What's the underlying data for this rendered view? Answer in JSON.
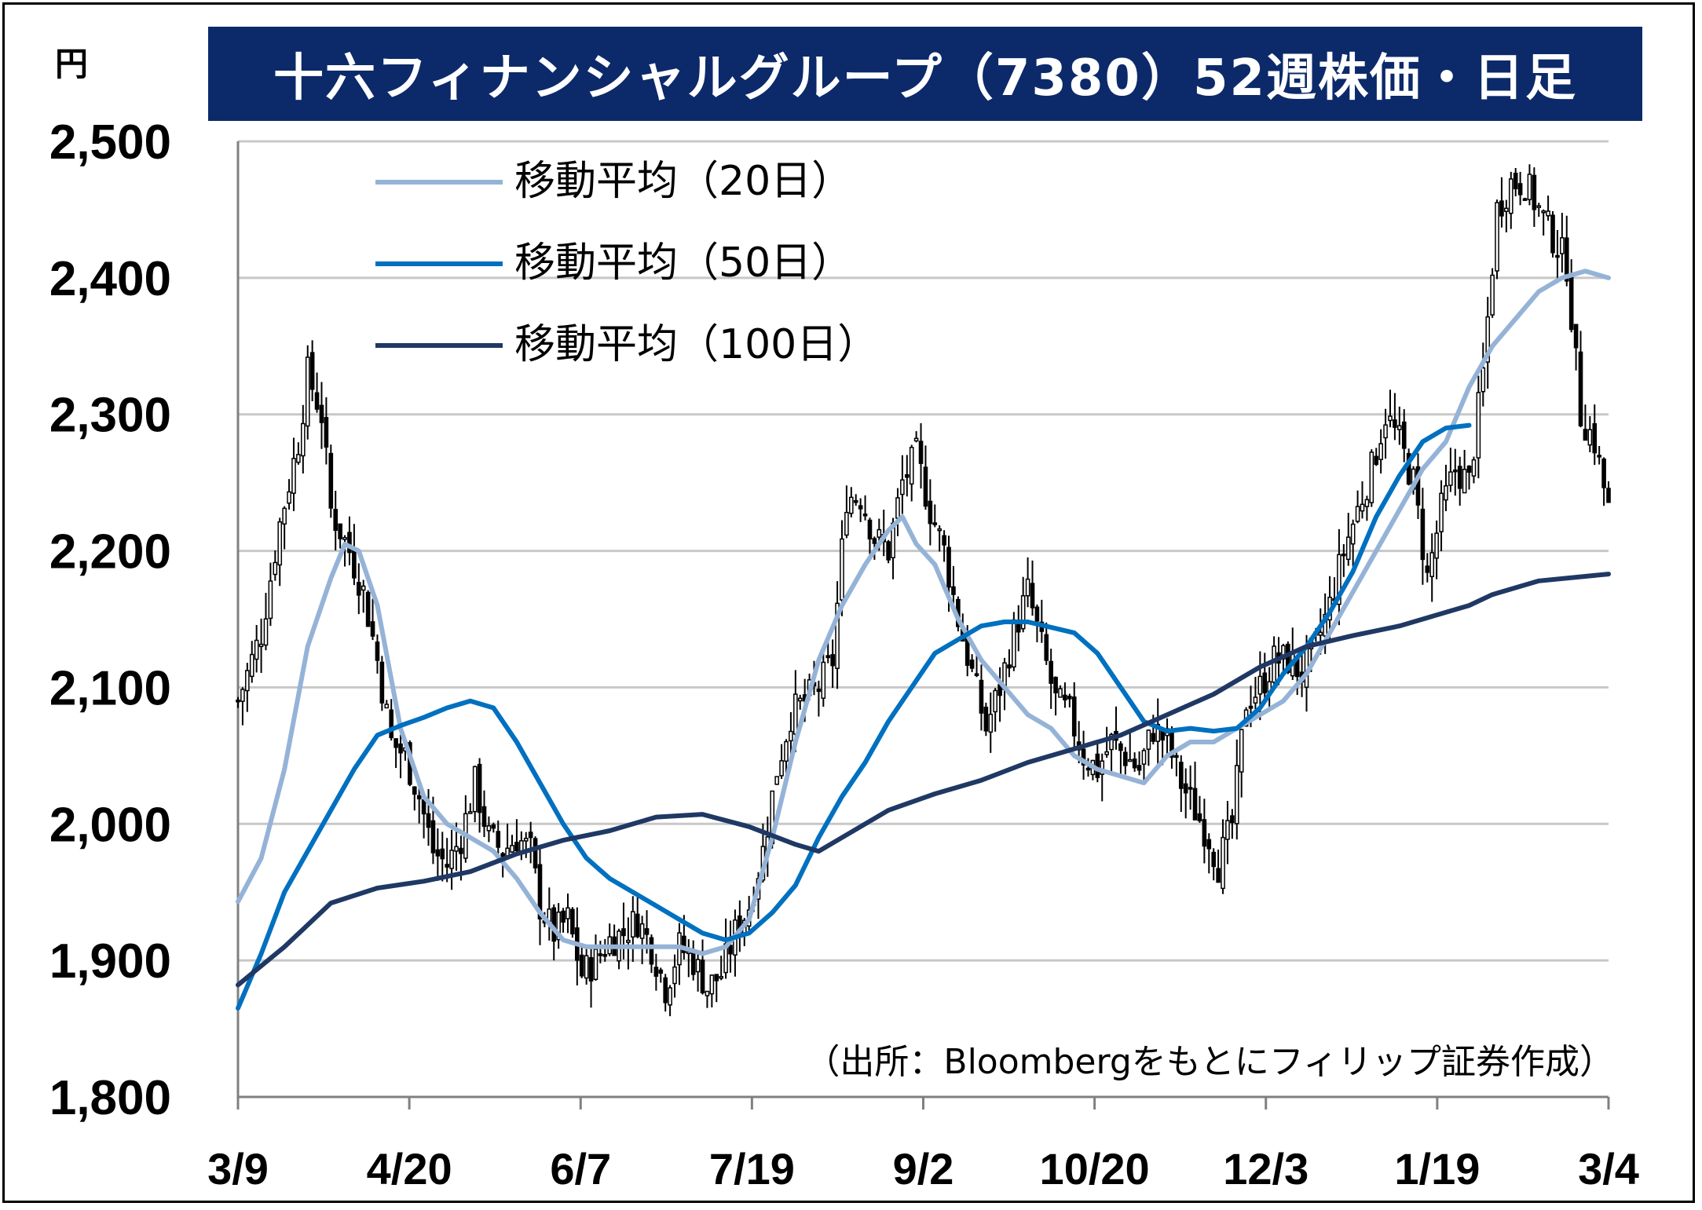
{
  "unit_label": "円",
  "chart_data": {
    "type": "candlestick",
    "title": "十六フィナンシャルグループ（7380）52週株価・日足",
    "source_note": "（出所：Bloombergをもとにフィリップ証券作成）",
    "ylim": [
      1800,
      2500
    ],
    "y_ticks": [
      "1,800",
      "1,900",
      "2,000",
      "2,100",
      "2,200",
      "2,300",
      "2,400",
      "2,500"
    ],
    "y_tick_values": [
      1800,
      1900,
      2000,
      2100,
      2200,
      2300,
      2400,
      2500
    ],
    "x_ticks": [
      "3/9",
      "4/20",
      "6/7",
      "7/19",
      "9/2",
      "10/20",
      "12/3",
      "1/19",
      "3/4"
    ],
    "grid": true,
    "legend_position": "top-left",
    "colors": {
      "ma20": "#95b3d7",
      "ma50": "#0070c0",
      "ma100": "#1f3864",
      "candle": "#000000",
      "title_bg": "#0c2a6a",
      "grid": "#c8c8c8"
    },
    "price_anchors": [
      [
        0,
        2090
      ],
      [
        5,
        2140
      ],
      [
        9,
        2220
      ],
      [
        13,
        2280
      ],
      [
        15,
        2330
      ],
      [
        18,
        2300
      ],
      [
        20,
        2230
      ],
      [
        24,
        2200
      ],
      [
        27,
        2170
      ],
      [
        30,
        2120
      ],
      [
        33,
        2060
      ],
      [
        36,
        2050
      ],
      [
        39,
        2020
      ],
      [
        42,
        1980
      ],
      [
        45,
        1970
      ],
      [
        48,
        1990
      ],
      [
        51,
        2030
      ],
      [
        54,
        1990
      ],
      [
        57,
        1980
      ],
      [
        60,
        1990
      ],
      [
        63,
        1980
      ],
      [
        65,
        1940
      ],
      [
        68,
        1920
      ],
      [
        71,
        1930
      ],
      [
        74,
        1890
      ],
      [
        77,
        1900
      ],
      [
        80,
        1915
      ],
      [
        83,
        1920
      ],
      [
        86,
        1930
      ],
      [
        89,
        1910
      ],
      [
        92,
        1880
      ],
      [
        95,
        1910
      ],
      [
        98,
        1900
      ],
      [
        101,
        1880
      ],
      [
        104,
        1890
      ],
      [
        107,
        1920
      ],
      [
        110,
        1940
      ],
      [
        113,
        1980
      ],
      [
        116,
        2040
      ],
      [
        119,
        2080
      ],
      [
        122,
        2090
      ],
      [
        125,
        2100
      ],
      [
        128,
        2120
      ],
      [
        131,
        2240
      ],
      [
        134,
        2240
      ],
      [
        137,
        2210
      ],
      [
        140,
        2200
      ],
      [
        143,
        2250
      ],
      [
        146,
        2270
      ],
      [
        149,
        2230
      ],
      [
        152,
        2200
      ],
      [
        155,
        2150
      ],
      [
        158,
        2110
      ],
      [
        161,
        2070
      ],
      [
        164,
        2100
      ],
      [
        167,
        2140
      ],
      [
        170,
        2170
      ],
      [
        173,
        2130
      ],
      [
        176,
        2090
      ],
      [
        179,
        2080
      ],
      [
        182,
        2050
      ],
      [
        185,
        2040
      ],
      [
        188,
        2060
      ],
      [
        191,
        2050
      ],
      [
        194,
        2040
      ],
      [
        197,
        2070
      ],
      [
        200,
        2060
      ],
      [
        203,
        2030
      ],
      [
        206,
        2010
      ],
      [
        209,
        1990
      ],
      [
        211,
        1970
      ],
      [
        214,
        2000
      ],
      [
        217,
        2090
      ],
      [
        220,
        2100
      ],
      [
        223,
        2120
      ],
      [
        226,
        2120
      ],
      [
        229,
        2110
      ],
      [
        232,
        2130
      ],
      [
        235,
        2160
      ],
      [
        238,
        2200
      ],
      [
        241,
        2230
      ],
      [
        244,
        2260
      ],
      [
        247,
        2300
      ],
      [
        250,
        2280
      ],
      [
        253,
        2250
      ],
      [
        256,
        2180
      ],
      [
        259,
        2230
      ],
      [
        262,
        2260
      ],
      [
        265,
        2250
      ],
      [
        268,
        2330
      ],
      [
        271,
        2450
      ],
      [
        274,
        2470
      ],
      [
        277,
        2470
      ],
      [
        280,
        2450
      ],
      [
        283,
        2430
      ],
      [
        286,
        2410
      ],
      [
        289,
        2300
      ],
      [
        292,
        2280
      ],
      [
        295,
        2230
      ]
    ],
    "series": [
      {
        "name": "移動平均（20日）",
        "points": [
          [
            0,
            1943
          ],
          [
            5,
            1975
          ],
          [
            10,
            2040
          ],
          [
            15,
            2130
          ],
          [
            20,
            2180
          ],
          [
            23,
            2205
          ],
          [
            26,
            2200
          ],
          [
            30,
            2160
          ],
          [
            35,
            2070
          ],
          [
            40,
            2020
          ],
          [
            45,
            2000
          ],
          [
            50,
            1990
          ],
          [
            55,
            1980
          ],
          [
            60,
            1960
          ],
          [
            65,
            1935
          ],
          [
            70,
            1915
          ],
          [
            75,
            1910
          ],
          [
            80,
            1910
          ],
          [
            85,
            1910
          ],
          [
            90,
            1910
          ],
          [
            95,
            1910
          ],
          [
            100,
            1905
          ],
          [
            105,
            1910
          ],
          [
            110,
            1930
          ],
          [
            115,
            1990
          ],
          [
            120,
            2060
          ],
          [
            125,
            2120
          ],
          [
            130,
            2160
          ],
          [
            135,
            2190
          ],
          [
            140,
            2215
          ],
          [
            143,
            2225
          ],
          [
            146,
            2205
          ],
          [
            150,
            2190
          ],
          [
            155,
            2150
          ],
          [
            160,
            2120
          ],
          [
            165,
            2100
          ],
          [
            170,
            2080
          ],
          [
            175,
            2070
          ],
          [
            180,
            2050
          ],
          [
            185,
            2040
          ],
          [
            190,
            2035
          ],
          [
            195,
            2030
          ],
          [
            200,
            2050
          ],
          [
            205,
            2060
          ],
          [
            210,
            2060
          ],
          [
            215,
            2070
          ],
          [
            220,
            2080
          ],
          [
            225,
            2090
          ],
          [
            230,
            2110
          ],
          [
            235,
            2140
          ],
          [
            240,
            2170
          ],
          [
            245,
            2200
          ],
          [
            250,
            2230
          ],
          [
            255,
            2260
          ],
          [
            260,
            2280
          ],
          [
            265,
            2320
          ],
          [
            270,
            2350
          ],
          [
            275,
            2370
          ],
          [
            280,
            2390
          ],
          [
            285,
            2400
          ],
          [
            290,
            2405
          ],
          [
            295,
            2400
          ]
        ]
      },
      {
        "name": "移動平均（50日）",
        "points": [
          [
            0,
            1865
          ],
          [
            5,
            1905
          ],
          [
            10,
            1950
          ],
          [
            15,
            1980
          ],
          [
            20,
            2010
          ],
          [
            25,
            2040
          ],
          [
            30,
            2065
          ],
          [
            35,
            2072
          ],
          [
            40,
            2078
          ],
          [
            45,
            2085
          ],
          [
            50,
            2090
          ],
          [
            55,
            2085
          ],
          [
            60,
            2060
          ],
          [
            65,
            2030
          ],
          [
            70,
            2000
          ],
          [
            75,
            1975
          ],
          [
            80,
            1960
          ],
          [
            85,
            1950
          ],
          [
            90,
            1940
          ],
          [
            95,
            1930
          ],
          [
            100,
            1920
          ],
          [
            105,
            1915
          ],
          [
            110,
            1920
          ],
          [
            115,
            1935
          ],
          [
            120,
            1955
          ],
          [
            125,
            1990
          ],
          [
            130,
            2020
          ],
          [
            135,
            2045
          ],
          [
            140,
            2075
          ],
          [
            145,
            2100
          ],
          [
            150,
            2125
          ],
          [
            155,
            2135
          ],
          [
            160,
            2145
          ],
          [
            165,
            2148
          ],
          [
            170,
            2148
          ],
          [
            175,
            2144
          ],
          [
            180,
            2140
          ],
          [
            185,
            2125
          ],
          [
            190,
            2100
          ],
          [
            195,
            2075
          ],
          [
            200,
            2068
          ],
          [
            205,
            2070
          ],
          [
            210,
            2068
          ],
          [
            215,
            2070
          ],
          [
            220,
            2085
          ],
          [
            225,
            2110
          ],
          [
            230,
            2130
          ],
          [
            235,
            2155
          ],
          [
            240,
            2185
          ],
          [
            245,
            2225
          ],
          [
            250,
            2255
          ],
          [
            255,
            2280
          ],
          [
            260,
            2290
          ],
          [
            265,
            2292
          ]
        ]
      },
      {
        "name": "移動平均（100日）",
        "points": [
          [
            0,
            1882
          ],
          [
            10,
            1910
          ],
          [
            20,
            1942
          ],
          [
            30,
            1953
          ],
          [
            40,
            1958
          ],
          [
            50,
            1965
          ],
          [
            60,
            1978
          ],
          [
            70,
            1988
          ],
          [
            80,
            1995
          ],
          [
            90,
            2005
          ],
          [
            100,
            2007
          ],
          [
            110,
            1998
          ],
          [
            120,
            1985
          ],
          [
            125,
            1980
          ],
          [
            130,
            1990
          ],
          [
            140,
            2010
          ],
          [
            150,
            2022
          ],
          [
            160,
            2032
          ],
          [
            170,
            2045
          ],
          [
            180,
            2055
          ],
          [
            190,
            2065
          ],
          [
            200,
            2080
          ],
          [
            210,
            2095
          ],
          [
            220,
            2115
          ],
          [
            230,
            2130
          ],
          [
            240,
            2138
          ],
          [
            250,
            2145
          ],
          [
            260,
            2155
          ],
          [
            265,
            2160
          ],
          [
            270,
            2168
          ],
          [
            280,
            2178
          ],
          [
            295,
            2183
          ]
        ]
      }
    ],
    "n_days": 296
  }
}
